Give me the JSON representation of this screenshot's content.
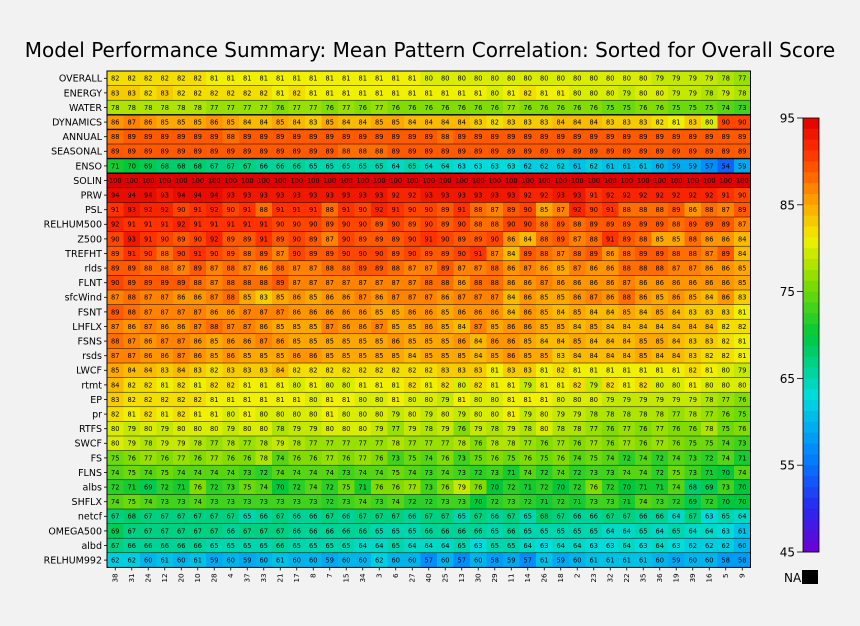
{
  "chart_data": {
    "type": "heatmap",
    "title": "Model Performance Summary: Mean Pattern Correlation: Sorted for Overall Score",
    "rows": [
      "OVERALL",
      "ENERGY",
      "WATER",
      "DYNAMICS",
      "ANNUAL",
      "SEASONAL",
      "ENSO",
      "SOLIN",
      "PRW",
      "PSL",
      "RELHUM500",
      "Z500",
      "TREFHT",
      "rlds",
      "FLNT",
      "sfcWind",
      "FSNT",
      "LHFLX",
      "FSNS",
      "rsds",
      "LWCF",
      "rtmt",
      "EP",
      "pr",
      "RTFS",
      "SWCF",
      "FS",
      "FLNS",
      "albs",
      "SHFLX",
      "netcf",
      "OMEGA500",
      "albd",
      "RELHUM992"
    ],
    "columns": [
      "38",
      "31",
      "24",
      "12",
      "20",
      "10",
      "28",
      "4",
      "37",
      "33",
      "21",
      "17",
      "8",
      "7",
      "15",
      "34",
      "3",
      "6",
      "27",
      "40",
      "25",
      "13",
      "30",
      "29",
      "11",
      "14",
      "26",
      "18",
      "2",
      "23",
      "32",
      "22",
      "35",
      "36",
      "19",
      "39",
      "16",
      "5",
      "9"
    ],
    "values": [
      [
        82,
        82,
        82,
        82,
        82,
        82,
        81,
        81,
        81,
        81,
        81,
        81,
        81,
        81,
        81,
        81,
        81,
        81,
        81,
        80,
        80,
        80,
        80,
        80,
        80,
        80,
        80,
        80,
        80,
        80,
        80,
        80,
        80,
        79,
        79,
        79,
        79,
        78,
        77
      ],
      [
        83,
        83,
        82,
        83,
        82,
        82,
        82,
        82,
        82,
        82,
        81,
        82,
        81,
        81,
        81,
        81,
        81,
        81,
        81,
        81,
        81,
        81,
        81,
        80,
        81,
        82,
        81,
        81,
        80,
        80,
        80,
        79,
        80,
        80,
        79,
        79,
        78,
        79,
        78
      ],
      [
        78,
        78,
        78,
        78,
        78,
        78,
        77,
        77,
        77,
        77,
        76,
        77,
        77,
        76,
        77,
        76,
        77,
        76,
        76,
        76,
        76,
        76,
        76,
        76,
        77,
        76,
        76,
        76,
        76,
        76,
        75,
        75,
        76,
        76,
        75,
        75,
        75,
        74,
        73
      ],
      [
        86,
        87,
        86,
        85,
        85,
        85,
        86,
        85,
        84,
        84,
        85,
        84,
        83,
        85,
        84,
        84,
        85,
        85,
        84,
        84,
        84,
        84,
        83,
        82,
        83,
        83,
        83,
        84,
        84,
        84,
        83,
        83,
        83,
        82,
        81,
        83,
        80,
        90,
        90
      ],
      [
        88,
        89,
        89,
        89,
        89,
        89,
        89,
        88,
        89,
        89,
        89,
        89,
        89,
        89,
        89,
        89,
        89,
        89,
        89,
        89,
        88,
        89,
        89,
        89,
        89,
        89,
        89,
        89,
        89,
        89,
        89,
        89,
        89,
        89,
        89,
        89,
        89,
        89,
        89
      ],
      [
        89,
        89,
        89,
        89,
        89,
        89,
        89,
        89,
        89,
        89,
        89,
        89,
        89,
        89,
        88,
        88,
        88,
        89,
        89,
        89,
        89,
        89,
        89,
        89,
        89,
        89,
        89,
        89,
        89,
        89,
        89,
        89,
        89,
        89,
        89,
        89,
        89,
        89,
        89
      ],
      [
        71,
        70,
        69,
        68,
        68,
        68,
        67,
        67,
        67,
        66,
        66,
        66,
        65,
        65,
        65,
        65,
        65,
        64,
        65,
        64,
        64,
        63,
        63,
        63,
        63,
        62,
        62,
        62,
        61,
        62,
        61,
        61,
        61,
        60,
        59,
        59,
        57,
        54,
        59
      ],
      [
        100,
        100,
        100,
        100,
        100,
        100,
        100,
        100,
        100,
        100,
        100,
        100,
        100,
        100,
        100,
        100,
        100,
        100,
        100,
        100,
        100,
        100,
        100,
        100,
        100,
        100,
        100,
        100,
        100,
        100,
        100,
        100,
        100,
        100,
        100,
        100,
        100,
        100,
        100
      ],
      [
        94,
        94,
        94,
        93,
        94,
        94,
        94,
        93,
        93,
        93,
        93,
        93,
        93,
        93,
        93,
        93,
        93,
        92,
        92,
        93,
        93,
        93,
        93,
        93,
        93,
        92,
        92,
        93,
        93,
        91,
        92,
        92,
        92,
        92,
        92,
        92,
        92,
        91,
        90
      ],
      [
        91,
        93,
        92,
        92,
        90,
        91,
        92,
        90,
        91,
        88,
        91,
        91,
        91,
        88,
        91,
        90,
        92,
        91,
        90,
        90,
        89,
        91,
        88,
        87,
        89,
        90,
        85,
        87,
        92,
        90,
        91,
        88,
        88,
        88,
        89,
        86,
        88,
        87,
        89
      ],
      [
        92,
        91,
        91,
        91,
        92,
        91,
        91,
        91,
        91,
        91,
        90,
        90,
        90,
        89,
        90,
        90,
        89,
        90,
        89,
        90,
        89,
        90,
        88,
        88,
        90,
        90,
        88,
        89,
        88,
        89,
        89,
        89,
        89,
        89,
        88,
        89,
        89,
        89,
        87
      ],
      [
        90,
        93,
        91,
        90,
        89,
        90,
        92,
        89,
        89,
        91,
        89,
        90,
        89,
        87,
        90,
        89,
        89,
        89,
        90,
        91,
        90,
        89,
        89,
        90,
        86,
        84,
        88,
        89,
        87,
        88,
        91,
        89,
        88,
        85,
        85,
        88,
        86,
        86,
        84
      ],
      [
        89,
        91,
        90,
        88,
        90,
        91,
        90,
        89,
        88,
        89,
        87,
        90,
        89,
        89,
        90,
        90,
        90,
        89,
        90,
        89,
        89,
        90,
        91,
        87,
        84,
        89,
        88,
        87,
        88,
        89,
        86,
        88,
        89,
        89,
        88,
        88,
        87,
        89,
        84
      ],
      [
        89,
        89,
        88,
        88,
        87,
        89,
        87,
        88,
        87,
        86,
        88,
        87,
        87,
        88,
        88,
        89,
        89,
        88,
        87,
        87,
        89,
        87,
        87,
        88,
        86,
        87,
        86,
        85,
        87,
        86,
        86,
        88,
        88,
        88,
        87,
        87,
        86,
        86,
        85
      ],
      [
        90,
        89,
        89,
        89,
        89,
        88,
        87,
        88,
        88,
        88,
        89,
        87,
        87,
        87,
        87,
        87,
        87,
        87,
        87,
        88,
        88,
        86,
        88,
        88,
        86,
        86,
        87,
        86,
        86,
        86,
        86,
        87,
        86,
        86,
        86,
        86,
        86,
        86,
        85
      ],
      [
        87,
        88,
        87,
        87,
        86,
        86,
        87,
        88,
        85,
        83,
        85,
        86,
        85,
        86,
        86,
        87,
        86,
        87,
        87,
        87,
        86,
        87,
        87,
        87,
        84,
        86,
        85,
        85,
        86,
        87,
        86,
        88,
        86,
        85,
        86,
        85,
        84,
        86,
        83
      ],
      [
        89,
        88,
        87,
        87,
        87,
        87,
        86,
        86,
        87,
        87,
        87,
        86,
        86,
        86,
        86,
        86,
        85,
        85,
        86,
        86,
        85,
        86,
        86,
        86,
        84,
        86,
        85,
        84,
        85,
        84,
        84,
        85,
        84,
        85,
        84,
        83,
        83,
        83,
        81
      ],
      [
        87,
        86,
        87,
        86,
        86,
        87,
        88,
        87,
        87,
        86,
        85,
        85,
        85,
        87,
        86,
        86,
        87,
        85,
        85,
        86,
        85,
        84,
        87,
        85,
        86,
        86,
        85,
        85,
        84,
        85,
        84,
        84,
        84,
        84,
        84,
        84,
        84,
        82,
        82
      ],
      [
        88,
        87,
        86,
        87,
        87,
        86,
        85,
        86,
        86,
        87,
        86,
        85,
        85,
        85,
        85,
        85,
        85,
        86,
        85,
        85,
        85,
        86,
        84,
        86,
        86,
        85,
        84,
        84,
        85,
        84,
        84,
        84,
        85,
        85,
        84,
        83,
        83,
        82,
        81
      ],
      [
        87,
        87,
        86,
        86,
        87,
        86,
        85,
        86,
        85,
        85,
        85,
        86,
        86,
        85,
        85,
        85,
        85,
        85,
        84,
        85,
        85,
        85,
        84,
        85,
        86,
        85,
        85,
        83,
        84,
        84,
        84,
        84,
        85,
        84,
        84,
        83,
        82,
        82,
        81
      ],
      [
        85,
        84,
        84,
        83,
        84,
        83,
        82,
        83,
        83,
        83,
        84,
        82,
        82,
        82,
        82,
        82,
        82,
        82,
        82,
        82,
        83,
        83,
        83,
        81,
        83,
        83,
        81,
        82,
        81,
        81,
        81,
        81,
        81,
        81,
        81,
        82,
        81,
        80,
        79
      ],
      [
        84,
        82,
        82,
        81,
        82,
        81,
        82,
        82,
        81,
        81,
        81,
        80,
        81,
        80,
        80,
        81,
        81,
        81,
        82,
        81,
        82,
        80,
        82,
        81,
        81,
        79,
        81,
        81,
        82,
        79,
        82,
        81,
        82,
        80,
        80,
        81,
        80,
        80,
        80
      ],
      [
        83,
        82,
        82,
        82,
        82,
        82,
        81,
        81,
        81,
        81,
        81,
        81,
        80,
        81,
        81,
        80,
        80,
        81,
        80,
        80,
        79,
        81,
        80,
        80,
        81,
        81,
        81,
        80,
        80,
        80,
        79,
        79,
        79,
        79,
        79,
        79,
        78,
        77,
        76
      ],
      [
        82,
        81,
        82,
        81,
        82,
        81,
        81,
        80,
        81,
        80,
        80,
        80,
        80,
        81,
        80,
        80,
        80,
        79,
        80,
        79,
        80,
        79,
        80,
        80,
        81,
        79,
        80,
        79,
        79,
        78,
        78,
        78,
        78,
        78,
        77,
        78,
        77,
        76,
        75
      ],
      [
        80,
        79,
        80,
        79,
        80,
        80,
        80,
        79,
        80,
        80,
        78,
        79,
        79,
        80,
        80,
        80,
        79,
        77,
        79,
        78,
        79,
        76,
        79,
        78,
        79,
        78,
        80,
        78,
        78,
        77,
        76,
        77,
        76,
        77,
        76,
        76,
        78,
        75,
        76
      ],
      [
        80,
        79,
        78,
        79,
        79,
        78,
        77,
        78,
        77,
        78,
        79,
        78,
        77,
        77,
        77,
        77,
        77,
        78,
        77,
        77,
        77,
        78,
        76,
        78,
        78,
        77,
        76,
        77,
        76,
        77,
        76,
        77,
        76,
        77,
        76,
        75,
        75,
        74,
        73
      ],
      [
        75,
        76,
        77,
        76,
        77,
        76,
        77,
        76,
        76,
        78,
        74,
        76,
        76,
        77,
        76,
        77,
        76,
        73,
        75,
        74,
        76,
        73,
        75,
        76,
        75,
        76,
        75,
        76,
        74,
        75,
        74,
        72,
        74,
        72,
        74,
        73,
        72,
        74,
        71
      ],
      [
        74,
        75,
        74,
        75,
        74,
        74,
        74,
        74,
        73,
        72,
        74,
        74,
        74,
        74,
        73,
        74,
        74,
        75,
        74,
        73,
        74,
        73,
        72,
        73,
        71,
        74,
        72,
        74,
        72,
        73,
        73,
        74,
        74,
        72,
        75,
        73,
        71,
        70,
        74
      ],
      [
        72,
        71,
        69,
        72,
        71,
        76,
        72,
        73,
        75,
        74,
        70,
        72,
        74,
        72,
        75,
        71,
        76,
        76,
        77,
        73,
        76,
        79,
        76,
        70,
        72,
        71,
        72,
        70,
        72,
        76,
        72,
        70,
        71,
        71,
        74,
        68,
        69,
        73,
        70
      ],
      [
        74,
        75,
        74,
        73,
        73,
        74,
        73,
        73,
        73,
        73,
        73,
        73,
        73,
        72,
        73,
        74,
        73,
        74,
        72,
        72,
        73,
        73,
        70,
        72,
        73,
        72,
        71,
        72,
        71,
        73,
        73,
        71,
        74,
        73,
        72,
        69,
        72,
        70,
        70
      ],
      [
        67,
        68,
        67,
        67,
        67,
        67,
        67,
        67,
        65,
        66,
        67,
        66,
        66,
        67,
        66,
        67,
        67,
        67,
        66,
        67,
        67,
        65,
        67,
        66,
        67,
        65,
        68,
        67,
        66,
        66,
        67,
        67,
        66,
        66,
        64,
        67,
        63,
        65,
        64
      ],
      [
        69,
        67,
        67,
        67,
        67,
        67,
        67,
        66,
        67,
        67,
        67,
        66,
        66,
        66,
        66,
        66,
        65,
        65,
        65,
        66,
        66,
        66,
        66,
        65,
        66,
        65,
        65,
        65,
        65,
        65,
        64,
        64,
        65,
        64,
        65,
        64,
        64,
        63,
        61
      ],
      [
        67,
        66,
        66,
        66,
        66,
        66,
        65,
        65,
        65,
        65,
        66,
        65,
        65,
        65,
        65,
        64,
        64,
        65,
        64,
        64,
        64,
        65,
        63,
        65,
        65,
        64,
        63,
        64,
        64,
        63,
        63,
        64,
        63,
        64,
        63,
        62,
        62,
        62,
        60
      ],
      [
        62,
        62,
        60,
        61,
        60,
        61,
        59,
        60,
        59,
        60,
        61,
        60,
        60,
        59,
        60,
        60,
        62,
        60,
        60,
        57,
        60,
        57,
        60,
        58,
        59,
        57,
        61,
        59,
        60,
        61,
        61,
        61,
        61,
        60,
        59,
        60,
        60,
        58,
        58
      ]
    ],
    "colorbar": {
      "min": 45,
      "max": 95,
      "ticks": [
        "95",
        "85",
        "75",
        "65",
        "55",
        "45"
      ]
    },
    "missing_label": "NA"
  }
}
